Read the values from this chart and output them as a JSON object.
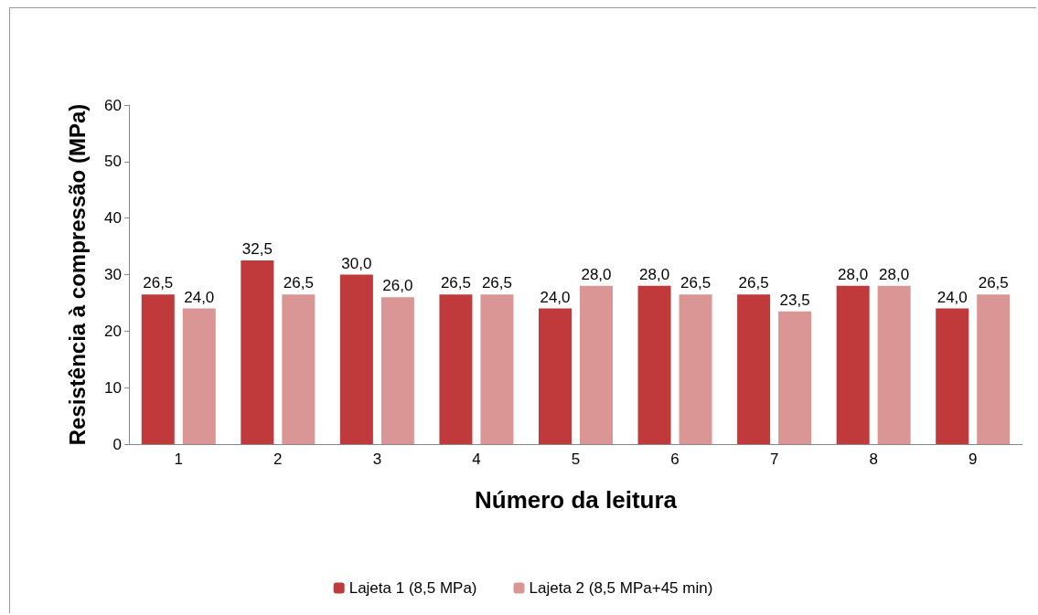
{
  "chart_data": {
    "type": "bar",
    "xlabel": "Número da leitura",
    "ylabel": "Resistência à compressão (MPa)",
    "categories": [
      "1",
      "2",
      "3",
      "4",
      "5",
      "6",
      "7",
      "8",
      "9"
    ],
    "series": [
      {
        "name": "Lajeta 1 (8,5 MPa)",
        "color": "#c0393b",
        "values": [
          26.5,
          32.5,
          30.0,
          26.5,
          24.0,
          28.0,
          26.5,
          28.0,
          24.0
        ],
        "value_labels": [
          "26,5",
          "32,5",
          "30,0",
          "26,5",
          "24,0",
          "28,0",
          "26,5",
          "28,0",
          "24,0"
        ]
      },
      {
        "name": "Lajeta 2 (8,5 MPa+45 min)",
        "color": "#d99694",
        "values": [
          24.0,
          26.5,
          26.0,
          26.5,
          28.0,
          26.5,
          23.5,
          28.0,
          26.5
        ],
        "value_labels": [
          "24,0",
          "26,5",
          "26,0",
          "26,5",
          "28,0",
          "26,5",
          "23,5",
          "28,0",
          "26,5"
        ]
      }
    ],
    "ylim": [
      0,
      60
    ],
    "yticks": [
      0,
      10,
      20,
      30,
      40,
      50,
      60
    ],
    "grid": false,
    "legend": "bottom"
  }
}
